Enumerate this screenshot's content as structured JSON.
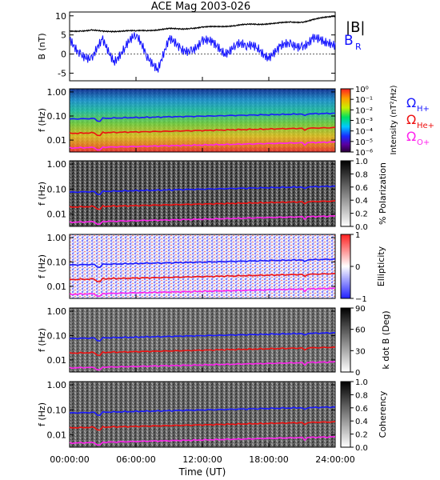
{
  "figure": {
    "title": "ACE Mag 2003-026",
    "x_axis_label": "Time (UT)",
    "x_tick_labels": [
      "00:00:00",
      "06:00:00",
      "12:00:00",
      "18:00:00",
      "24:00:00"
    ]
  },
  "chart_data": [
    {
      "type": "line",
      "ylabel": "B (nT)",
      "ylim": [
        -7,
        11
      ],
      "y_ticks": [
        -5,
        0,
        5,
        10
      ],
      "x_hours": [
        0,
        1,
        2,
        3,
        4,
        5,
        6,
        7,
        8,
        9,
        10,
        11,
        12,
        13,
        14,
        15,
        16,
        17,
        18,
        19,
        20,
        21,
        22,
        23,
        24
      ],
      "series": [
        {
          "name": "|B|",
          "color": "#000000",
          "values": [
            6.0,
            6.1,
            6.2,
            5.9,
            6.0,
            6.1,
            6.0,
            6.2,
            6.4,
            6.6,
            6.5,
            6.8,
            7.0,
            7.1,
            7.3,
            7.5,
            7.7,
            7.8,
            8.0,
            8.1,
            8.3,
            8.4,
            9.0,
            9.5,
            10.0
          ]
        },
        {
          "name": "B_R",
          "color": "#1010ff",
          "values": [
            4.0,
            1.0,
            -2.0,
            3.0,
            -1.0,
            2.0,
            4.0,
            0.0,
            -3.0,
            3.0,
            1.0,
            2.0,
            3.0,
            2.0,
            1.0,
            3.0,
            1.0,
            2.0,
            0.0,
            1.0,
            2.0,
            3.0,
            4.0,
            2.0,
            3.0
          ]
        }
      ]
    },
    {
      "type": "heatmap",
      "ylabel": "f (Hz)",
      "y_scale": "log",
      "y_ticks": [
        "1.00",
        "0.10",
        "0.01"
      ],
      "colorbar": {
        "label": "Intensity (nT²/Hz)",
        "ticks": [
          "10⁰",
          "10⁻¹",
          "10⁻²",
          "10⁻³",
          "10⁻⁴",
          "10⁻⁵",
          "10⁻⁶"
        ],
        "style": "rainbow"
      },
      "lines": [
        {
          "name": "ΩH+",
          "color": "#1a1aff",
          "start": 0.075,
          "end": 0.13
        },
        {
          "name": "ΩHe+",
          "color": "#ee1111",
          "start": 0.019,
          "end": 0.033
        },
        {
          "name": "ΩO+",
          "color": "#ff22ee",
          "start": 0.0047,
          "end": 0.0083
        }
      ]
    },
    {
      "type": "heatmap",
      "ylabel": "f (Hz)",
      "y_scale": "log",
      "y_ticks": [
        "1.00",
        "0.10",
        "0.01"
      ],
      "colorbar": {
        "label": "% Polarization",
        "ticks": [
          "1.0",
          "0.8",
          "0.6",
          "0.4",
          "0.2",
          "0.0"
        ],
        "style": "gray"
      }
    },
    {
      "type": "heatmap",
      "ylabel": "f (Hz)",
      "y_scale": "log",
      "y_ticks": [
        "1.00",
        "0.10",
        "0.01"
      ],
      "colorbar": {
        "label": "Ellipticity",
        "ticks": [
          "1",
          "0",
          "−1"
        ],
        "style": "bwr"
      }
    },
    {
      "type": "heatmap",
      "ylabel": "f (Hz)",
      "y_scale": "log",
      "y_ticks": [
        "1.00",
        "0.10",
        "0.01"
      ],
      "colorbar": {
        "label": "k dot B (Deg)",
        "ticks": [
          "90",
          "60",
          "30",
          "0"
        ],
        "style": "gray"
      }
    },
    {
      "type": "heatmap",
      "ylabel": "f (Hz)",
      "y_scale": "log",
      "y_ticks": [
        "1.00",
        "0.10",
        "0.01"
      ],
      "colorbar": {
        "label": "Coherency",
        "ticks": [
          "1.0",
          "0.8",
          "0.6",
          "0.4",
          "0.2",
          "0.0"
        ],
        "style": "gray"
      }
    }
  ],
  "legend": {
    "b_mag": "|B|",
    "b_r": "B",
    "b_r_sub": "R",
    "omega": "Ω",
    "omega_h": "H+",
    "omega_he": "He+",
    "omega_o": "O+",
    "colors": {
      "black": "#000000",
      "blue": "#1010ff",
      "red": "#ee1111",
      "magenta": "#ff22ee"
    }
  }
}
